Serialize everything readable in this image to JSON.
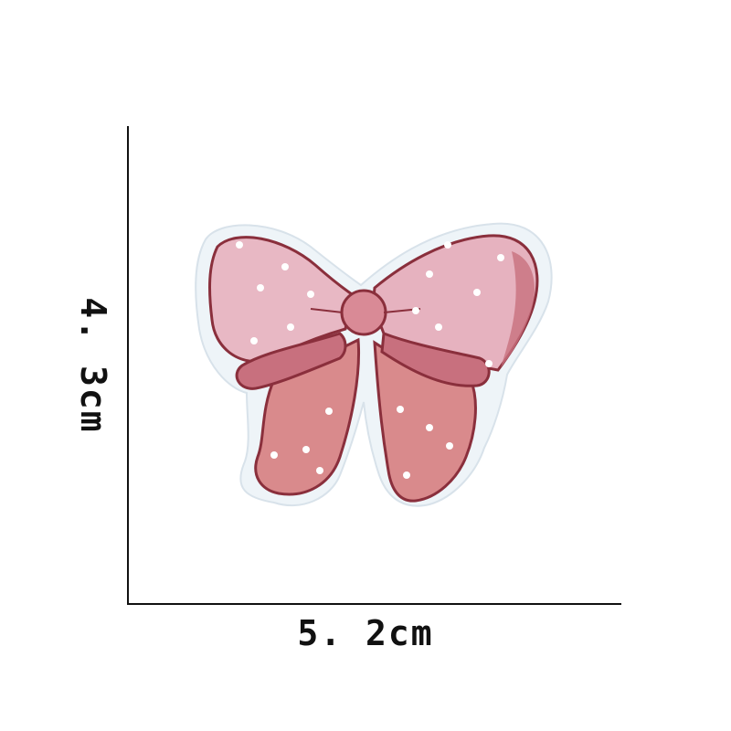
{
  "dimensions": {
    "height_label": "4. 3cm",
    "width_label": "5. 2cm"
  },
  "product": {
    "icon": "embroidered-bow-patch",
    "colors": {
      "border": "#eef4f8",
      "outline": "#8a2f3c",
      "wing_fill": "#e8b8c4",
      "tail_fill": "#d98a8c",
      "loop_fill": "#c8707e",
      "dots": "#ffffff"
    }
  }
}
